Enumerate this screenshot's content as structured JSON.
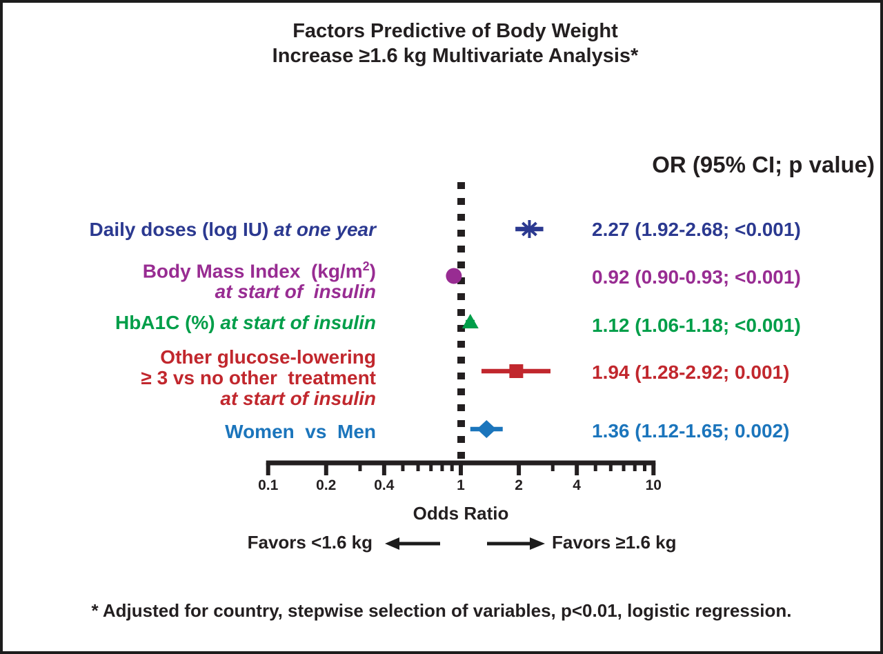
{
  "title": {
    "line1": "Factors Predictive of Body Weight",
    "line2": "Increase ≥1.6 kg Multivariate Analysis*"
  },
  "column_header": "OR (95% CI; p value)",
  "favors": {
    "left": "Favors <1.6 kg",
    "right": "Favors ≥1.6 kg"
  },
  "footnote": "* Adjusted for country, stepwise selection of variables, p<0.01, logistic regression.",
  "chart_data": {
    "type": "forest",
    "x_scale": "log",
    "xlim": [
      0.1,
      10
    ],
    "xlabel": "Odds Ratio",
    "reference_line": 1,
    "grid": false,
    "major_ticks": [
      {
        "value": 0.1,
        "label": "0.1"
      },
      {
        "value": 0.2,
        "label": "0.2"
      },
      {
        "value": 0.4,
        "label": "0.4"
      },
      {
        "value": 1,
        "label": "1"
      },
      {
        "value": 2,
        "label": "2"
      },
      {
        "value": 4,
        "label": "4"
      },
      {
        "value": 10,
        "label": "10"
      }
    ],
    "minor_ticks": [
      0.3,
      0.5,
      0.6,
      0.7,
      0.8,
      0.9,
      3,
      5,
      6,
      7,
      8,
      9
    ],
    "rows": [
      {
        "label_lines": [
          [
            {
              "text": "Daily doses (log IU) "
            },
            {
              "text": "at one year",
              "italic": true
            }
          ]
        ],
        "or": 2.27,
        "ci_low": 1.92,
        "ci_high": 2.68,
        "p_value": "<0.001",
        "value_text": "2.27 (1.92-2.68; <0.001)",
        "color": "#2B3990",
        "marker": "asterisk"
      },
      {
        "label_lines": [
          [
            {
              "text": "Body Mass Index  (kg/m"
            },
            {
              "text": "2",
              "sup": true
            },
            {
              "text": ")"
            }
          ],
          [
            {
              "text": "at start of  insulin",
              "italic": true
            }
          ]
        ],
        "or": 0.92,
        "ci_low": 0.9,
        "ci_high": 0.93,
        "p_value": "<0.001",
        "value_text": "0.92 (0.90-0.93; <0.001)",
        "color": "#982C92",
        "marker": "circle"
      },
      {
        "label_lines": [
          [
            {
              "text": "HbA1C (%) "
            },
            {
              "text": "at start of insulin",
              "italic": true
            }
          ]
        ],
        "or": 1.12,
        "ci_low": 1.06,
        "ci_high": 1.18,
        "p_value": "<0.001",
        "value_text": "1.12 (1.06-1.18; <0.001)",
        "color": "#009E49",
        "marker": "triangle"
      },
      {
        "label_lines": [
          [
            {
              "text": "Other glucose-lowering"
            }
          ],
          [
            {
              "text": "≥ 3 vs no other  treatment"
            }
          ],
          [
            {
              "text": "at start of insulin",
              "italic": true
            }
          ]
        ],
        "or": 1.94,
        "ci_low": 1.28,
        "ci_high": 2.92,
        "p_value": "0.001",
        "value_text": "1.94 (1.28-2.92; 0.001)",
        "color": "#C1272D",
        "marker": "square"
      },
      {
        "label_lines": [
          [
            {
              "text": "Women  vs  Men"
            }
          ]
        ],
        "or": 1.36,
        "ci_low": 1.12,
        "ci_high": 1.65,
        "p_value": "0.002",
        "value_text": "1.36 (1.12-1.65; 0.002)",
        "color": "#1B75BC",
        "marker": "diamond"
      }
    ]
  }
}
